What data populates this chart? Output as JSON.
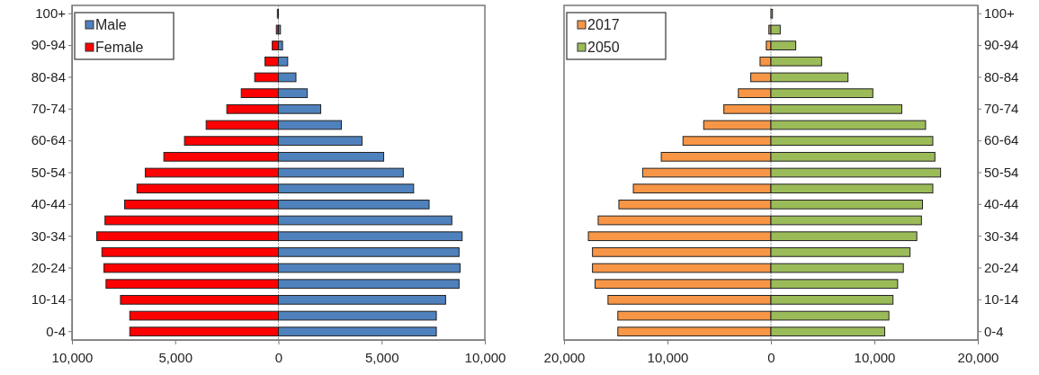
{
  "chart_data": [
    {
      "type": "bar",
      "orientation": "horizontal",
      "stacked": true,
      "categories": [
        "100+",
        null,
        "90-94",
        null,
        "80-84",
        null,
        "70-74",
        null,
        "60-64",
        null,
        "50-54",
        null,
        "40-44",
        null,
        "30-34",
        null,
        "20-24",
        null,
        "10-14",
        null,
        "0-4"
      ],
      "series": [
        {
          "name": "Male",
          "color": "#4f81bd",
          "values": [
            null,
            100,
            200,
            450,
            850,
            1400,
            2050,
            3050,
            4050,
            5100,
            6050,
            6550,
            7300,
            8400,
            8900,
            8750,
            8800,
            8750,
            8100,
            7650,
            7650
          ]
        },
        {
          "name": "Female",
          "color": "#ff0000",
          "values": [
            -50,
            -100,
            -300,
            -650,
            -1150,
            -1800,
            -2500,
            -3500,
            -4550,
            -5550,
            -6450,
            -6850,
            -7450,
            -8400,
            -8800,
            -8550,
            -8450,
            -8350,
            -7650,
            -7200,
            -7200
          ]
        }
      ],
      "xlim": [
        -10000,
        10000
      ],
      "xticks": [
        {
          "value": -10000,
          "label": "10,000"
        },
        {
          "value": -5000,
          "label": "5,000"
        },
        0,
        {
          "value": 5000,
          "label": "5,000"
        },
        {
          "value": 10000,
          "label": "10,000"
        }
      ],
      "legend": "top left"
    },
    {
      "type": "bar",
      "orientation": "horizontal",
      "stacked": true,
      "categories": [
        "100+",
        null,
        "90-94",
        null,
        "80-84",
        null,
        "70-74",
        null,
        "60-64",
        null,
        "50-54",
        null,
        "40-44",
        null,
        "30-34",
        null,
        "20-24",
        null,
        "10-14",
        null,
        "0-4"
      ],
      "series": [
        {
          "name": "2017",
          "color": "#f79646",
          "values": [
            null,
            -200,
            -450,
            -1050,
            -1950,
            -3150,
            -4550,
            -6500,
            -8500,
            -10600,
            -12400,
            -13300,
            -14700,
            -16700,
            -17650,
            -17250,
            -17250,
            -17000,
            -15750,
            -14800,
            -14800
          ]
        },
        {
          "name": "2050",
          "color": "#9bbb59",
          "values": [
            150,
            900,
            2400,
            4900,
            7450,
            9850,
            12650,
            14950,
            15650,
            15850,
            16400,
            15650,
            14650,
            14550,
            14100,
            13450,
            12800,
            12250,
            11800,
            11400,
            11000
          ]
        }
      ],
      "xlim": [
        -20000,
        20000
      ],
      "xticks": [
        {
          "value": -20000,
          "label": "20,000"
        },
        {
          "value": -10000,
          "label": "10,000"
        },
        0,
        {
          "value": 10000,
          "label": "10,000"
        },
        {
          "value": 20000,
          "label": "20,000"
        }
      ],
      "legend": "top left"
    }
  ]
}
